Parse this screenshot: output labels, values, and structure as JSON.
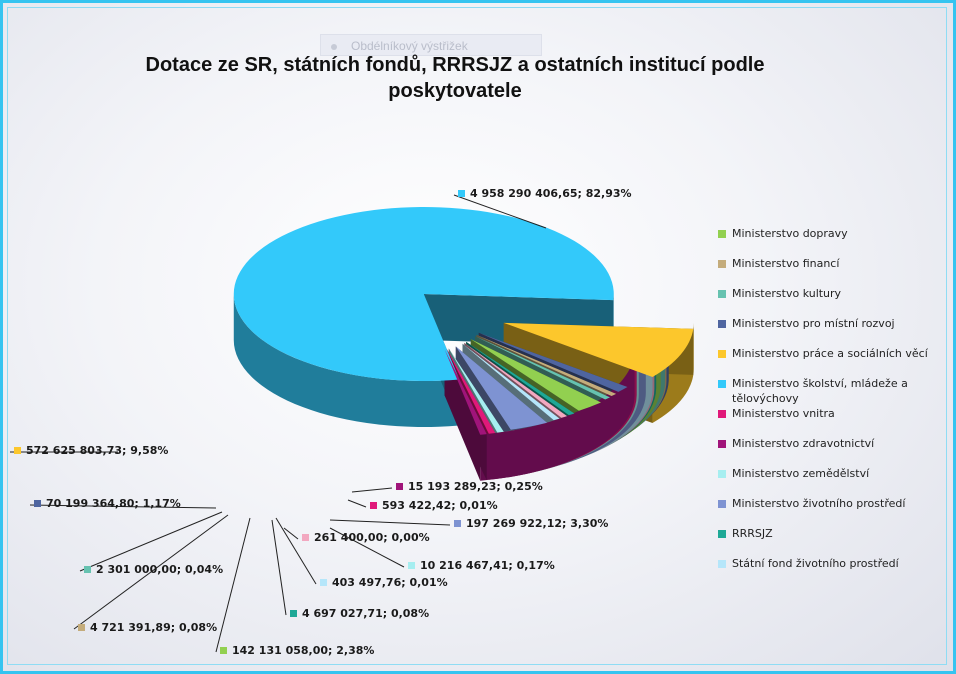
{
  "chart_data": {
    "type": "pie",
    "title": "Dotace ze SR, státních fondů, RRRSJZ a ostatních institucí podle poskytovatele",
    "slices": [
      {
        "name": "Ministerstvo dopravy",
        "value": 142131058.0,
        "label": "142 131 058,00; 2,38%",
        "color": "#92d050"
      },
      {
        "name": "Ministerstvo financí",
        "value": 4721391.89,
        "label": "4 721 391,89; 0,08%",
        "color": "#c4ac7c"
      },
      {
        "name": "Ministerstvo kultury",
        "value": 2301000.0,
        "label": "2 301 000,00; 0,04%",
        "color": "#66c2b0"
      },
      {
        "name": "Ministerstvo pro místní rozvoj",
        "value": 70199364.8,
        "label": "70 199 364,80; 1,17%",
        "color": "#4f65a0"
      },
      {
        "name": "Ministerstvo práce a sociálních věcí",
        "value": 572625803.73,
        "label": "572 625 803,73; 9,58%",
        "color": "#fcc72c"
      },
      {
        "name": "Ministerstvo školství, mládeže a tělovýchovy",
        "value": 4958290406.65,
        "label": "4 958 290 406,65; 82,93%",
        "color": "#33c9fa"
      },
      {
        "name": "Ministerstvo vnitra",
        "value": 593422.42,
        "label": "593 422,42; 0,01%",
        "color": "#e0197a"
      },
      {
        "name": "Ministerstvo zdravotnictví",
        "value": 15193289.23,
        "label": "15 193 289,23; 0,25%",
        "color": "#a0147a"
      },
      {
        "name": "Ministerstvo zemědělství",
        "value": 10216467.41,
        "label": "10 216 467,41; 0,17%",
        "color": "#a6eef0"
      },
      {
        "name": "Ministerstvo životního prostředí",
        "value": 197269922.12,
        "label": "197 269 922,12; 3,30%",
        "color": "#7e93d2"
      },
      {
        "name": "RRRSJZ",
        "value": 4697027.71,
        "label": "4 697 027,71; 0,08%",
        "color": "#1ea896"
      },
      {
        "name": "Státní fond životního prostředí",
        "value": 403497.76,
        "label": "403 497,76; 0,01%",
        "color": "#b5e6fa"
      },
      {
        "name": "",
        "value": 261400.0,
        "label": "261 400,00; 0,00%",
        "color": "#f2a8c0"
      }
    ],
    "legend_position": "right",
    "exploded": true,
    "three_d": true
  },
  "ghost_tab": {
    "label": "Obdélníkový výstřižek",
    "color": "#c6cad6"
  },
  "legend": {
    "items": [
      {
        "label": "Ministerstvo dopravy",
        "color": "#92d050"
      },
      {
        "label": "Ministerstvo financí",
        "color": "#c4ac7c"
      },
      {
        "label": "Ministerstvo kultury",
        "color": "#66c2b0"
      },
      {
        "label": "Ministerstvo pro místní rozvoj",
        "color": "#4f65a0"
      },
      {
        "label": "Ministerstvo práce a sociálních věcí",
        "color": "#fcc72c"
      },
      {
        "label": "Ministerstvo školství, mládeže a tělovýchovy",
        "color": "#33c9fa"
      },
      {
        "label": "Ministerstvo vnitra",
        "color": "#e0197a"
      },
      {
        "label": "Ministerstvo zdravotnictví",
        "color": "#a0147a"
      },
      {
        "label": "Ministerstvo zemědělství",
        "color": "#a6eef0"
      },
      {
        "label": "Ministerstvo životního prostředí",
        "color": "#7e93d2"
      },
      {
        "label": "RRRSJZ",
        "color": "#1ea896"
      },
      {
        "label": "Státní fond životního prostředí",
        "color": "#b5e6fa"
      }
    ]
  }
}
